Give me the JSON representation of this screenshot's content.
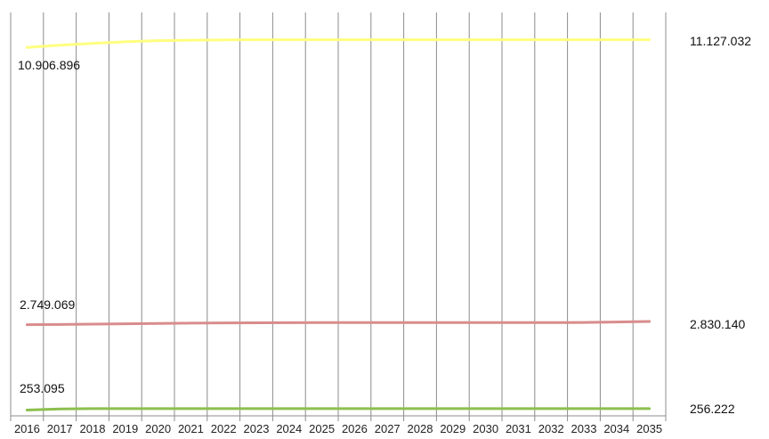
{
  "chart_data": {
    "type": "line",
    "title": "",
    "xlabel": "",
    "ylabel": "",
    "x": [
      "2016",
      "2017",
      "2018",
      "2019",
      "2020",
      "2021",
      "2022",
      "2023",
      "2024",
      "2025",
      "2026",
      "2027",
      "2028",
      "2029",
      "2030",
      "2031",
      "2032",
      "2033",
      "2034",
      "2035"
    ],
    "grid": {
      "vertical": true,
      "horizontal": false
    },
    "legend": "none",
    "y_axis_visible": false,
    "series": [
      {
        "color": "#ffff80",
        "values": [
          10906896,
          10970000,
          11020000,
          11070000,
          11100000,
          11115000,
          11122000,
          11126000,
          11128000,
          11128000,
          11128000,
          11128000,
          11128000,
          11128000,
          11128000,
          11128000,
          11128000,
          11128000,
          11128000,
          11127032
        ],
        "start_label": "10.906.896",
        "end_label": "11.127.032"
      },
      {
        "color": "#d98c8c",
        "values": [
          2749069,
          2755000,
          2762000,
          2770000,
          2778000,
          2786000,
          2792000,
          2796000,
          2799000,
          2800000,
          2800000,
          2800000,
          2800000,
          2800000,
          2800000,
          2800000,
          2800000,
          2803000,
          2815000,
          2830140
        ],
        "start_label": "2.749.069",
        "end_label": "2.830.140"
      },
      {
        "color": "#8cbf4d",
        "values": [
          253095,
          255500,
          256300,
          256300,
          256300,
          256300,
          256300,
          256300,
          256300,
          256300,
          256300,
          256300,
          256300,
          256300,
          256300,
          256300,
          256300,
          256300,
          256300,
          256222
        ],
        "start_label": "253.095",
        "end_label": "256.222"
      }
    ]
  }
}
